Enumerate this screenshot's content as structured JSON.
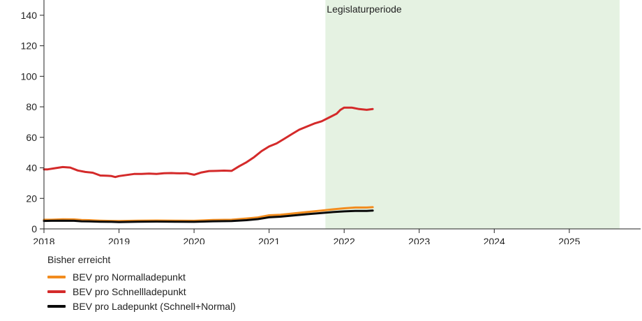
{
  "chart_data": {
    "type": "line",
    "title": "",
    "xlabel": "",
    "ylabel": "",
    "xlim": [
      2018,
      2025.95
    ],
    "ylim": [
      0,
      150
    ],
    "x_ticks": [
      "2018",
      "2019",
      "2020",
      "2021",
      "2022",
      "2023",
      "2024",
      "2025"
    ],
    "y_ticks": [
      "0",
      "20",
      "40",
      "60",
      "80",
      "100",
      "120",
      "140"
    ],
    "grid": false,
    "annotation_band": {
      "label": "Legislaturperiode",
      "start": 2021.75,
      "end": 2025.67,
      "color": "#e5f2e2"
    },
    "legend": {
      "title": "Bisher erreicht",
      "placement": "bottom-left"
    },
    "series": [
      {
        "name": "BEV pro Normalladepunkt",
        "color": "#f28c1e",
        "x": [
          2018.0,
          2018.1,
          2018.25,
          2018.4,
          2018.5,
          2018.6,
          2018.75,
          2018.9,
          2019.0,
          2019.25,
          2019.5,
          2019.75,
          2020.0,
          2020.25,
          2020.5,
          2020.7,
          2020.85,
          2021.0,
          2021.15,
          2021.3,
          2021.5,
          2021.7,
          2021.85,
          2022.0,
          2022.15,
          2022.3,
          2022.38
        ],
        "y": [
          6,
          6,
          6.3,
          6.2,
          5.8,
          5.7,
          5.4,
          5.2,
          5.1,
          5.4,
          5.5,
          5.4,
          5.3,
          5.8,
          6,
          6.8,
          7.5,
          8.9,
          9.3,
          10,
          11,
          12,
          12.8,
          13.5,
          14,
          14,
          14.2
        ]
      },
      {
        "name": "BEV pro Schnellladepunkt",
        "color": "#d42a2a",
        "x": [
          2018.0,
          2018.05,
          2018.15,
          2018.25,
          2018.35,
          2018.45,
          2018.55,
          2018.65,
          2018.75,
          2018.85,
          2018.9,
          2018.95,
          2019.0,
          2019.1,
          2019.2,
          2019.3,
          2019.4,
          2019.5,
          2019.6,
          2019.7,
          2019.8,
          2019.9,
          2020.0,
          2020.1,
          2020.2,
          2020.3,
          2020.4,
          2020.5,
          2020.6,
          2020.7,
          2020.8,
          2020.9,
          2021.0,
          2021.1,
          2021.2,
          2021.3,
          2021.4,
          2021.5,
          2021.6,
          2021.7,
          2021.8,
          2021.9,
          2021.95,
          2022.0,
          2022.05,
          2022.1,
          2022.2,
          2022.3,
          2022.38
        ],
        "y": [
          39,
          39,
          39.8,
          40.5,
          40.2,
          38.3,
          37.3,
          36.8,
          35,
          34.8,
          34.6,
          34,
          34.6,
          35.3,
          36,
          36,
          36.2,
          36,
          36.5,
          36.6,
          36.4,
          36.5,
          35.5,
          37,
          37.9,
          38,
          38.2,
          38,
          41,
          43.7,
          47,
          51,
          54,
          56,
          59,
          62,
          65,
          67,
          69,
          70.5,
          73,
          75.5,
          78,
          79.5,
          79.5,
          79.5,
          78.5,
          78,
          78.5
        ]
      },
      {
        "name": "BEV pro Ladepunkt (Schnell+Normal)",
        "color": "#0a0a0a",
        "x": [
          2018.0,
          2018.1,
          2018.25,
          2018.4,
          2018.5,
          2018.6,
          2018.75,
          2018.9,
          2019.0,
          2019.25,
          2019.5,
          2019.75,
          2020.0,
          2020.25,
          2020.5,
          2020.7,
          2020.85,
          2021.0,
          2021.15,
          2021.3,
          2021.5,
          2021.7,
          2021.85,
          2022.0,
          2022.15,
          2022.3,
          2022.38
        ],
        "y": [
          5.2,
          5.3,
          5.4,
          5.3,
          5,
          4.9,
          4.7,
          4.6,
          4.5,
          4.7,
          4.8,
          4.7,
          4.6,
          5,
          5.1,
          5.7,
          6.4,
          7.6,
          8,
          8.7,
          9.6,
          10.4,
          11,
          11.5,
          11.8,
          11.8,
          12
        ]
      }
    ]
  }
}
